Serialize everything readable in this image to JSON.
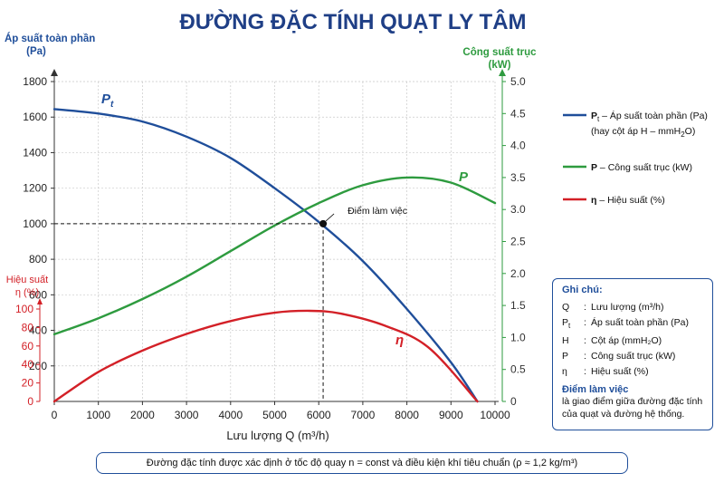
{
  "chart_data": {
    "type": "line",
    "title": "ĐƯỜNG ĐẶC TÍNH QUẠT LY TÂM",
    "xlabel": "Lưu lượng Q (m³/h)",
    "xlim": [
      0,
      10000
    ],
    "xticks": [
      0,
      1000,
      2000,
      3000,
      4000,
      5000,
      6000,
      7000,
      8000,
      9000,
      10000
    ],
    "axes": {
      "pressure": {
        "label": "Áp suất toàn phần",
        "unit": "(Pa)",
        "range": [
          0,
          1800
        ],
        "ticks": [
          0,
          200,
          400,
          600,
          800,
          1000,
          1200,
          1400,
          1600,
          1800
        ],
        "color": "#1f4e9a"
      },
      "efficiency": {
        "label": "Hiệu suất",
        "unit": "η (%)",
        "range": [
          0,
          100
        ],
        "ticks": [
          0,
          20,
          40,
          60,
          80,
          100
        ],
        "color": "#d32027"
      },
      "power": {
        "label": "Công suất trục",
        "unit": "(kW)",
        "range": [
          0,
          5
        ],
        "ticks": [
          "0",
          "0.5",
          "1.0",
          "1.5",
          "2.0",
          "2.5",
          "3.0",
          "3.5",
          "4.0",
          "4.5",
          "5.0"
        ],
        "color": "#2e9b3f"
      }
    },
    "series": [
      {
        "key": "Pt",
        "axis": "pressure",
        "color": "#1f4e9a",
        "x": [
          0,
          1000,
          2000,
          3000,
          4000,
          5000,
          6000,
          7000,
          8000,
          9000,
          9600
        ],
        "y": [
          1645,
          1620,
          1575,
          1490,
          1370,
          1200,
          1010,
          790,
          520,
          220,
          0
        ]
      },
      {
        "key": "P",
        "axis": "power",
        "color": "#2e9b3f",
        "x": [
          0,
          1000,
          2000,
          3000,
          4000,
          5000,
          6000,
          7000,
          8000,
          9000,
          10000
        ],
        "y": [
          1.05,
          1.3,
          1.6,
          1.95,
          2.35,
          2.75,
          3.1,
          3.38,
          3.5,
          3.42,
          3.1
        ]
      },
      {
        "key": "eta",
        "axis": "efficiency",
        "color": "#d32027",
        "x": [
          0,
          1000,
          2000,
          3000,
          4000,
          5000,
          5800,
          6500,
          7500,
          8500,
          9600
        ],
        "y": [
          0,
          32,
          55,
          73,
          87,
          96,
          98,
          95,
          82,
          58,
          0
        ]
      }
    ],
    "curve_labels": {
      "Pt_main": "P",
      "Pt_sub": "t",
      "P": "P",
      "eta": "η"
    },
    "operating_point": {
      "x": 6100,
      "y": 1000,
      "label": "Điểm làm việc"
    },
    "legend": {
      "placement": "right",
      "items": [
        {
          "key": "Pt",
          "color": "#1f4e9a",
          "sym": "P",
          "sub": "t",
          "line1": " – Áp suất toàn phần (Pa)",
          "line2a": "(hay cột áp H – mmH",
          "line2sub": "2",
          "line2b": "O)"
        },
        {
          "key": "P",
          "color": "#2e9b3f",
          "sym": "P",
          "line1": " – Công suất trục (kW)"
        },
        {
          "key": "eta",
          "color": "#d32027",
          "sym": "η",
          "line1": " – Hiệu suất (%)"
        }
      ]
    }
  },
  "notes": {
    "title": "Ghi chú:",
    "rows": [
      {
        "k": "Q",
        "sub": "",
        "v": "Lưu lượng (m³/h)"
      },
      {
        "k": "P",
        "sub": "t",
        "v": "Áp suất toàn phần (Pa)"
      },
      {
        "k": "H",
        "sub": "",
        "v": "Cột áp (mmH₂O)"
      },
      {
        "k": "P",
        "sub": "",
        "v": "Công suất trục (kW)"
      },
      {
        "k": "η",
        "sub": "",
        "v": "Hiệu suất (%)"
      }
    ],
    "op_title": "Điểm làm việc",
    "op_desc": "là giao điểm giữa đường đặc tính của quạt và đường hệ thống."
  },
  "footer": "Đường đặc tính được xác định ở tốc độ quay n = const và điều kiện khí tiêu chuẩn (ρ ≈ 1,2 kg/m³)"
}
